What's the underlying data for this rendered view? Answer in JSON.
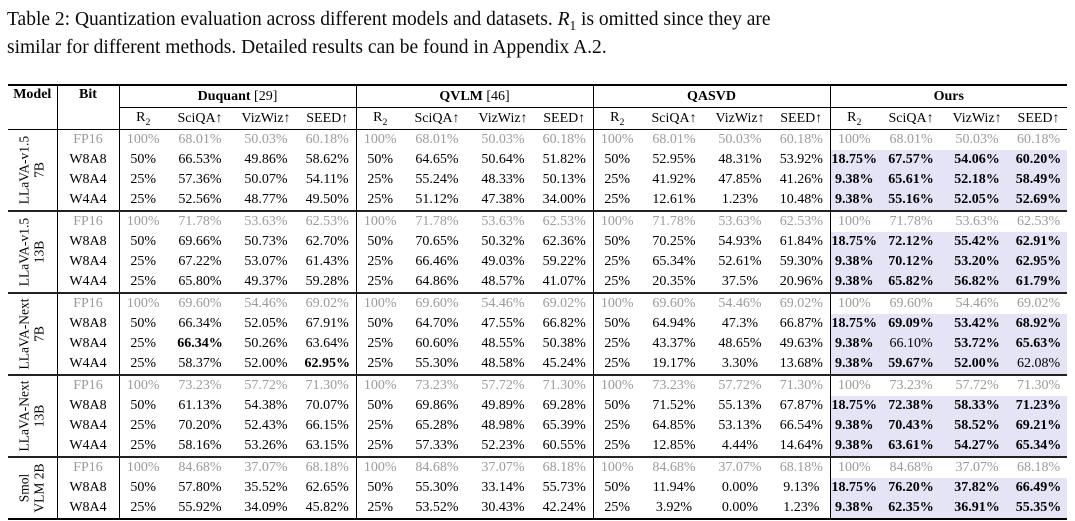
{
  "caption": {
    "part1": "Table 2: Quantization evaluation across different models and datasets.",
    "math_base": "R",
    "math_sub": "1",
    "part2": "is omitted since they are",
    "part3": "similar for different methods. Detailed results can be found in Appendix A.2."
  },
  "table": {
    "corner_headers": {
      "model": "Model",
      "bit": "Bit"
    },
    "methods": [
      {
        "name": "Duquant",
        "cite": " [29]"
      },
      {
        "name": "QVLM",
        "cite": " [46]"
      },
      {
        "name": "QASVD",
        "cite": ""
      },
      {
        "name": "Ours",
        "cite": ""
      }
    ],
    "metric_header": {
      "r2_base": "R",
      "r2_sub": "2",
      "metrics": [
        "SciQA↑",
        "VizWiz↑",
        "SEED↑"
      ]
    },
    "groups": [
      {
        "model_line1": "LLaVA-v1.5",
        "model_line2": "7B",
        "rows": [
          {
            "bit": "FP16",
            "fp16": true,
            "cells": [
              [
                "100%",
                "68.01%",
                "50.03%",
                "60.18%"
              ],
              [
                "100%",
                "68.01%",
                "50.03%",
                "60.18%"
              ],
              [
                "100%",
                "68.01%",
                "50.03%",
                "60.18%"
              ],
              [
                "100%",
                "68.01%",
                "50.03%",
                "60.18%"
              ]
            ]
          },
          {
            "bit": "W8A8",
            "fp16": false,
            "cells": [
              [
                "50%",
                "66.53%",
                "49.86%",
                "58.62%"
              ],
              [
                "50%",
                "64.65%",
                "50.64%",
                "51.82%"
              ],
              [
                "50%",
                "52.95%",
                "48.31%",
                "53.92%"
              ],
              [
                "18.75%",
                "67.57%",
                "54.06%",
                "60.20%"
              ]
            ]
          },
          {
            "bit": "W8A4",
            "fp16": false,
            "cells": [
              [
                "25%",
                "57.36%",
                "50.07%",
                "54.11%"
              ],
              [
                "25%",
                "55.24%",
                "48.33%",
                "50.13%"
              ],
              [
                "25%",
                "41.92%",
                "47.85%",
                "41.26%"
              ],
              [
                "9.38%",
                "65.61%",
                "52.18%",
                "58.49%"
              ]
            ]
          },
          {
            "bit": "W4A4",
            "fp16": false,
            "cells": [
              [
                "25%",
                "52.56%",
                "48.77%",
                "49.50%"
              ],
              [
                "25%",
                "51.12%",
                "47.38%",
                "34.00%"
              ],
              [
                "25%",
                "12.61%",
                "1.23%",
                "10.48%"
              ],
              [
                "9.38%",
                "55.16%",
                "52.05%",
                "52.69%"
              ]
            ]
          }
        ]
      },
      {
        "model_line1": "LLaVA-v1.5",
        "model_line2": "13B",
        "rows": [
          {
            "bit": "FP16",
            "fp16": true,
            "cells": [
              [
                "100%",
                "71.78%",
                "53.63%",
                "62.53%"
              ],
              [
                "100%",
                "71.78%",
                "53.63%",
                "62.53%"
              ],
              [
                "100%",
                "71.78%",
                "53.63%",
                "62.53%"
              ],
              [
                "100%",
                "71.78%",
                "53.63%",
                "62.53%"
              ]
            ]
          },
          {
            "bit": "W8A8",
            "fp16": false,
            "cells": [
              [
                "50%",
                "69.66%",
                "50.73%",
                "62.70%"
              ],
              [
                "50%",
                "70.65%",
                "50.32%",
                "62.36%"
              ],
              [
                "50%",
                "70.25%",
                "54.93%",
                "61.84%"
              ],
              [
                "18.75%",
                "72.12%",
                "55.42%",
                "62.91%"
              ]
            ]
          },
          {
            "bit": "W8A4",
            "fp16": false,
            "cells": [
              [
                "25%",
                "67.22%",
                "53.07%",
                "61.43%"
              ],
              [
                "25%",
                "66.46%",
                "49.03%",
                "59.22%"
              ],
              [
                "25%",
                "65.34%",
                "52.61%",
                "59.30%"
              ],
              [
                "9.38%",
                "70.12%",
                "53.20%",
                "62.95%"
              ]
            ]
          },
          {
            "bit": "W4A4",
            "fp16": false,
            "cells": [
              [
                "25%",
                "65.80%",
                "49.37%",
                "59.28%"
              ],
              [
                "25%",
                "64.86%",
                "48.57%",
                "41.07%"
              ],
              [
                "25%",
                "20.35%",
                "37.5%",
                "20.96%"
              ],
              [
                "9.38%",
                "65.82%",
                "56.82%",
                "61.79%"
              ]
            ]
          }
        ]
      },
      {
        "model_line1": "LLaVA-Next",
        "model_line2": "7B",
        "rows": [
          {
            "bit": "FP16",
            "fp16": true,
            "cells": [
              [
                "100%",
                "69.60%",
                "54.46%",
                "69.02%"
              ],
              [
                "100%",
                "69.60%",
                "54.46%",
                "69.02%"
              ],
              [
                "100%",
                "69.60%",
                "54.46%",
                "69.02%"
              ],
              [
                "100%",
                "69.60%",
                "54.46%",
                "69.02%"
              ]
            ]
          },
          {
            "bit": "W8A8",
            "fp16": false,
            "cells": [
              [
                "50%",
                "66.34%",
                "52.05%",
                "67.91%"
              ],
              [
                "50%",
                "64.70%",
                "47.55%",
                "66.82%"
              ],
              [
                "50%",
                "64.94%",
                "47.3%",
                "66.87%"
              ],
              [
                "18.75%",
                "69.09%",
                "53.42%",
                "68.92%"
              ]
            ]
          },
          {
            "bit": "W8A4",
            "fp16": false,
            "cells": [
              [
                "25%",
                "66.34%",
                "50.26%",
                "63.64%"
              ],
              [
                "25%",
                "60.60%",
                "48.55%",
                "50.38%"
              ],
              [
                "25%",
                "43.37%",
                "48.65%",
                "49.63%"
              ],
              [
                "9.38%",
                "66.10%",
                "53.72%",
                "65.63%"
              ]
            ]
          },
          {
            "bit": "W4A4",
            "fp16": false,
            "cells": [
              [
                "25%",
                "58.37%",
                "52.00%",
                "62.95%"
              ],
              [
                "25%",
                "55.30%",
                "48.58%",
                "45.24%"
              ],
              [
                "25%",
                "19.17%",
                "3.30%",
                "13.68%"
              ],
              [
                "9.38%",
                "59.67%",
                "52.00%",
                "62.08%"
              ]
            ]
          }
        ]
      },
      {
        "model_line1": "LLaVA-Next",
        "model_line2": "13B",
        "rows": [
          {
            "bit": "FP16",
            "fp16": true,
            "cells": [
              [
                "100%",
                "73.23%",
                "57.72%",
                "71.30%"
              ],
              [
                "100%",
                "73.23%",
                "57.72%",
                "71.30%"
              ],
              [
                "100%",
                "73.23%",
                "57.72%",
                "71.30%"
              ],
              [
                "100%",
                "73.23%",
                "57.72%",
                "71.30%"
              ]
            ]
          },
          {
            "bit": "W8A8",
            "fp16": false,
            "cells": [
              [
                "50%",
                "61.13%",
                "54.38%",
                "70.07%"
              ],
              [
                "50%",
                "69.86%",
                "49.89%",
                "69.28%"
              ],
              [
                "50%",
                "71.52%",
                "55.13%",
                "67.87%"
              ],
              [
                "18.75%",
                "72.38%",
                "58.33%",
                "71.23%"
              ]
            ]
          },
          {
            "bit": "W8A4",
            "fp16": false,
            "cells": [
              [
                "25%",
                "70.20%",
                "52.43%",
                "66.15%"
              ],
              [
                "25%",
                "65.28%",
                "48.98%",
                "65.39%"
              ],
              [
                "25%",
                "64.85%",
                "53.13%",
                "66.54%"
              ],
              [
                "9.38%",
                "70.43%",
                "58.52%",
                "69.21%"
              ]
            ]
          },
          {
            "bit": "W4A4",
            "fp16": false,
            "cells": [
              [
                "25%",
                "58.16%",
                "53.26%",
                "63.15%"
              ],
              [
                "25%",
                "57.33%",
                "52.23%",
                "60.55%"
              ],
              [
                "25%",
                "12.85%",
                "4.44%",
                "14.64%"
              ],
              [
                "9.38%",
                "63.61%",
                "54.27%",
                "65.34%"
              ]
            ]
          }
        ]
      },
      {
        "model_line1": "Smol",
        "model_line2": "VLM 2B",
        "rows": [
          {
            "bit": "FP16",
            "fp16": true,
            "cells": [
              [
                "100%",
                "84.68%",
                "37.07%",
                "68.18%"
              ],
              [
                "100%",
                "84.68%",
                "37.07%",
                "68.18%"
              ],
              [
                "100%",
                "84.68%",
                "37.07%",
                "68.18%"
              ],
              [
                "100%",
                "84.68%",
                "37.07%",
                "68.18%"
              ]
            ]
          },
          {
            "bit": "W8A8",
            "fp16": false,
            "cells": [
              [
                "50%",
                "57.80%",
                "35.52%",
                "62.65%"
              ],
              [
                "50%",
                "55.30%",
                "33.14%",
                "55.73%"
              ],
              [
                "50%",
                "11.94%",
                "0.00%",
                "9.13%"
              ],
              [
                "18.75%",
                "76.20%",
                "37.82%",
                "66.49%"
              ]
            ]
          },
          {
            "bit": "W8A4",
            "fp16": false,
            "cells": [
              [
                "25%",
                "55.92%",
                "34.09%",
                "45.82%"
              ],
              [
                "25%",
                "53.52%",
                "30.43%",
                "42.24%"
              ],
              [
                "25%",
                "3.92%",
                "0.00%",
                "1.23%"
              ],
              [
                "9.38%",
                "62.35%",
                "36.91%",
                "55.35%"
              ]
            ]
          }
        ]
      }
    ],
    "styles": {
      "highlight_color": "#e4e4f6",
      "fp16_color": "#9b9b9b",
      "extra_bold": [
        {
          "group": 2,
          "row": 2,
          "method": 0,
          "col": 1
        },
        {
          "group": 2,
          "row": 3,
          "method": 0,
          "col": 3
        }
      ],
      "ours_not_bold": [
        {
          "group": 2,
          "row": 2,
          "col": 1
        },
        {
          "group": 2,
          "row": 3,
          "col": 3
        }
      ]
    }
  }
}
